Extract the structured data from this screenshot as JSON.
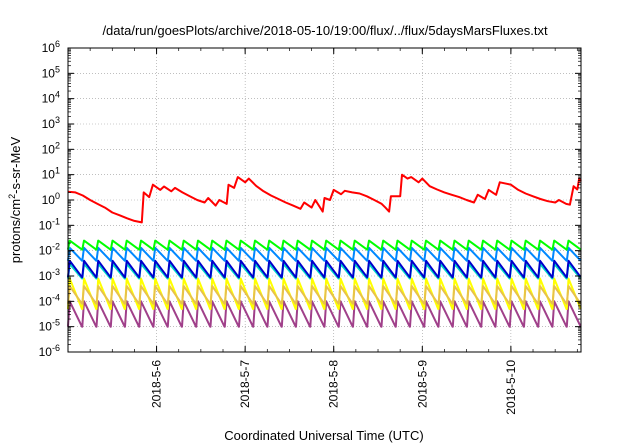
{
  "chart_data": {
    "type": "line",
    "title": "/data/run/goesPlots/archive/2018-05-10/19:00/flux/../flux/5daysMarsFluxes.txt",
    "xlabel": "Coordinated Universal Time (UTC)",
    "ylabel": {
      "base": "protons/cm",
      "sup": "2",
      "rest": "-s-sr-MeV"
    },
    "y_scale": "log",
    "ylim_exponent": [
      -6,
      6
    ],
    "y_tick_exponents": [
      -6,
      -5,
      -4,
      -3,
      -2,
      -1,
      0,
      1,
      2,
      3,
      4,
      5,
      6
    ],
    "y_tick_base": "10",
    "xlim": [
      "2018-05-05T00:00",
      "2018-05-10T19:00"
    ],
    "x_tick_labels": [
      "2018-5-6",
      "2018-5-7",
      "2018-5-8",
      "2018-5-9",
      "2018-5-10"
    ],
    "x_tick_dates": [
      "2018-05-06T00:00",
      "2018-05-07T00:00",
      "2018-05-08T00:00",
      "2018-05-09T00:00",
      "2018-05-10T00:00"
    ],
    "grid": true,
    "grid_style": "dotted",
    "legend": "none",
    "series": [
      {
        "color": "#ff0000",
        "points": [
          [
            "2018-05-05T00:00",
            2.1
          ],
          [
            "2018-05-05T02:00",
            2.0
          ],
          [
            "2018-05-05T04:00",
            1.5
          ],
          [
            "2018-05-05T06:00",
            1.0
          ],
          [
            "2018-05-05T08:00",
            0.7
          ],
          [
            "2018-05-05T10:00",
            0.5
          ],
          [
            "2018-05-05T12:00",
            0.32
          ],
          [
            "2018-05-05T14:00",
            0.25
          ],
          [
            "2018-05-05T16:00",
            0.19
          ],
          [
            "2018-05-05T18:00",
            0.15
          ],
          [
            "2018-05-05T20:00",
            0.13
          ],
          [
            "2018-05-05T20:30",
            2.0
          ],
          [
            "2018-05-05T22:00",
            1.3
          ],
          [
            "2018-05-05T23:00",
            4.0
          ],
          [
            "2018-05-06T01:00",
            2.5
          ],
          [
            "2018-05-06T02:00",
            3.4
          ],
          [
            "2018-05-06T04:00",
            2.2
          ],
          [
            "2018-05-06T05:00",
            3.0
          ],
          [
            "2018-05-06T07:00",
            2.0
          ],
          [
            "2018-05-06T09:00",
            1.4
          ],
          [
            "2018-05-06T11:00",
            1.0
          ],
          [
            "2018-05-06T13:00",
            0.8
          ],
          [
            "2018-05-06T14:00",
            1.2
          ],
          [
            "2018-05-06T16:00",
            0.6
          ],
          [
            "2018-05-06T17:00",
            1.0
          ],
          [
            "2018-05-06T19:00",
            0.7
          ],
          [
            "2018-05-06T19:30",
            4.0
          ],
          [
            "2018-05-06T21:00",
            3.0
          ],
          [
            "2018-05-06T22:00",
            8.0
          ],
          [
            "2018-05-07T00:00",
            5.0
          ],
          [
            "2018-05-07T01:00",
            7.0
          ],
          [
            "2018-05-07T03:00",
            3.6
          ],
          [
            "2018-05-07T05:00",
            2.2
          ],
          [
            "2018-05-07T07:00",
            1.5
          ],
          [
            "2018-05-07T09:00",
            1.1
          ],
          [
            "2018-05-07T11:00",
            0.8
          ],
          [
            "2018-05-07T13:00",
            0.6
          ],
          [
            "2018-05-07T15:00",
            0.45
          ],
          [
            "2018-05-07T16:00",
            0.8
          ],
          [
            "2018-05-07T18:00",
            0.5
          ],
          [
            "2018-05-07T19:00",
            1.0
          ],
          [
            "2018-05-07T21:00",
            0.35
          ],
          [
            "2018-05-07T21:30",
            1.2
          ],
          [
            "2018-05-07T23:00",
            1.0
          ],
          [
            "2018-05-08T00:00",
            2.5
          ],
          [
            "2018-05-08T02:00",
            1.7
          ],
          [
            "2018-05-08T03:00",
            2.3
          ],
          [
            "2018-05-08T05:00",
            2.0
          ],
          [
            "2018-05-08T07:00",
            1.8
          ],
          [
            "2018-05-08T09:00",
            1.4
          ],
          [
            "2018-05-08T11:00",
            1.0
          ],
          [
            "2018-05-08T13:00",
            0.7
          ],
          [
            "2018-05-08T14:00",
            0.5
          ],
          [
            "2018-05-08T15:00",
            0.35
          ],
          [
            "2018-05-08T15:30",
            1.4
          ],
          [
            "2018-05-08T18:00",
            1.4
          ],
          [
            "2018-05-08T18:30",
            10.0
          ],
          [
            "2018-05-08T20:00",
            7.0
          ],
          [
            "2018-05-08T21:00",
            8.0
          ],
          [
            "2018-05-08T23:00",
            5.0
          ],
          [
            "2018-05-09T00:00",
            7.0
          ],
          [
            "2018-05-09T02:00",
            3.5
          ],
          [
            "2018-05-09T04:00",
            2.6
          ],
          [
            "2018-05-09T06:00",
            2.0
          ],
          [
            "2018-05-09T08:00",
            1.6
          ],
          [
            "2018-05-09T10:00",
            1.3
          ],
          [
            "2018-05-09T12:00",
            1.0
          ],
          [
            "2018-05-09T14:00",
            0.8
          ],
          [
            "2018-05-09T15:00",
            1.6
          ],
          [
            "2018-05-09T17:00",
            1.1
          ],
          [
            "2018-05-09T18:00",
            2.5
          ],
          [
            "2018-05-09T20:00",
            1.6
          ],
          [
            "2018-05-09T21:00",
            5.0
          ],
          [
            "2018-05-10T00:00",
            4.0
          ],
          [
            "2018-05-10T02:00",
            2.5
          ],
          [
            "2018-05-10T04:00",
            1.8
          ],
          [
            "2018-05-10T06:00",
            1.4
          ],
          [
            "2018-05-10T08:00",
            1.1
          ],
          [
            "2018-05-10T10:00",
            0.9
          ],
          [
            "2018-05-10T12:00",
            0.8
          ],
          [
            "2018-05-10T13:00",
            1.0
          ],
          [
            "2018-05-10T15:00",
            0.7
          ],
          [
            "2018-05-10T16:00",
            0.65
          ],
          [
            "2018-05-10T17:00",
            3.5
          ],
          [
            "2018-05-10T18:00",
            2.6
          ],
          [
            "2018-05-10T18:30",
            7.0
          ],
          [
            "2018-05-10T19:00",
            5.5
          ]
        ]
      },
      {
        "color": "#00ff00",
        "sawtooth": {
          "lo": 0.011,
          "hi": 0.025,
          "cycles": 36
        }
      },
      {
        "color": "#0088ff",
        "sawtooth": {
          "lo": 0.004,
          "hi": 0.013,
          "cycles": 36
        }
      },
      {
        "color": "#00d8c8",
        "sawtooth": {
          "lo": 0.0008,
          "hi": 0.003,
          "cycles": 36
        }
      },
      {
        "color": "#0000cc",
        "sawtooth": {
          "lo": 0.0009,
          "hi": 0.004,
          "cycles": 36
        }
      },
      {
        "color": "#ffff00",
        "sawtooth": {
          "lo": 5e-05,
          "hi": 0.0008,
          "cycles": 36
        }
      },
      {
        "color": "#e8c24a",
        "sawtooth": {
          "lo": 8e-05,
          "hi": 0.0004,
          "cycles": 36
        }
      },
      {
        "color": "#a0408a",
        "sawtooth": {
          "lo": 1e-05,
          "hi": 0.0001,
          "cycles": 36
        }
      }
    ]
  }
}
